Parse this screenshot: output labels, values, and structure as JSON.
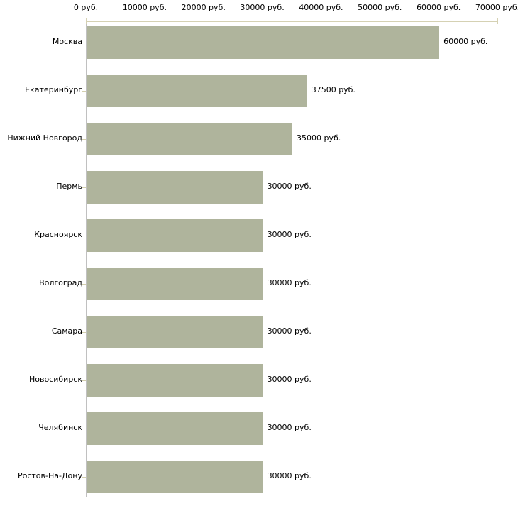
{
  "chart_data": {
    "type": "bar",
    "orientation": "horizontal",
    "title": "",
    "xlabel": "",
    "ylabel": "",
    "categories": [
      "Москва",
      "Екатеринбург",
      "Нижний Новгород",
      "Пермь",
      "Красноярск",
      "Волгоград",
      "Самара",
      "Новосибирск",
      "Челябинск",
      "Ростов-На-Дону"
    ],
    "values": [
      60000,
      37500,
      35000,
      30000,
      30000,
      30000,
      30000,
      30000,
      30000,
      30000
    ],
    "value_labels": [
      "60000 руб.",
      "37500 руб.",
      "35000 руб.",
      "30000 руб.",
      "30000 руб.",
      "30000 руб.",
      "30000 руб.",
      "30000 руб.",
      "30000 руб.",
      "30000 руб."
    ],
    "x_axis": {
      "position": "top",
      "range": [
        0,
        70000
      ],
      "ticks": [
        0,
        10000,
        20000,
        30000,
        40000,
        50000,
        60000,
        70000
      ],
      "tick_labels": [
        "0 руб.",
        "10000 руб.",
        "20000 руб.",
        "30000 руб.",
        "40000 руб.",
        "50000 руб.",
        "60000 руб.",
        "70000 руб."
      ]
    },
    "grid": false,
    "legend": false,
    "colors": {
      "bar": "#afb49c",
      "x_axis_line": "#d5d1b3",
      "x_tick": "#d5d1b3",
      "y_axis_line": "#c0c0c0",
      "category_tick": "#d3cfae",
      "text": "#000000",
      "background": "#ffffff"
    }
  }
}
